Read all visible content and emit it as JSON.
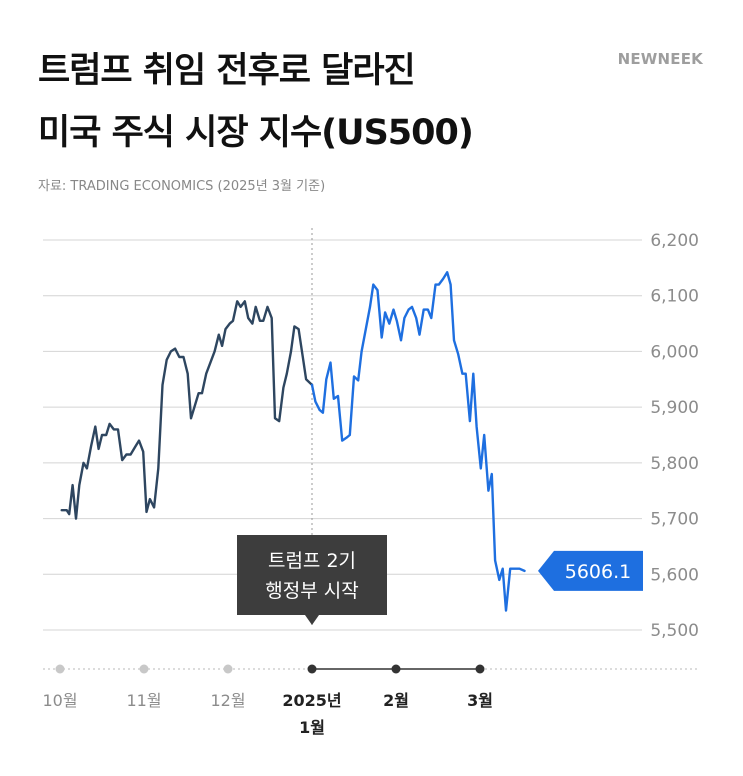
{
  "header": {
    "title_line1": "트럼프 취임 전후로 달라진",
    "title_line2": "미국 주식 시장 지수(US500)",
    "brand": "NEWNEEK",
    "source": "자료: TRADING ECONOMICS (2025년 3월 기준)"
  },
  "colors": {
    "before": "#2e4660",
    "after": "#1e6fe0",
    "grid": "#d4d4d4",
    "axis_dark": "#333333",
    "axis_light": "#c8c8c8",
    "callout_bg": "#3d3d3d"
  },
  "annotation": {
    "line1": "트럼프 2기",
    "line2": "행정부 시작"
  },
  "last_value_label": "5606.1",
  "chart_data": {
    "type": "line",
    "title": "트럼프 취임 전후로 달라진 미국 주식 시장 지수(US500)",
    "ylim": [
      5500,
      6200
    ],
    "yticks": [
      "6,200",
      "6,100",
      "6,000",
      "5,900",
      "5,800",
      "5,700",
      "5,600",
      "5,500"
    ],
    "ytick_values": [
      6200,
      6100,
      6000,
      5900,
      5800,
      5700,
      5600,
      5500
    ],
    "xticks": [
      {
        "label": "10월",
        "t": 0
      },
      {
        "label": "11월",
        "t": 1
      },
      {
        "label": "12월",
        "t": 2
      },
      {
        "label": "2025년",
        "label2": "1월",
        "t": 3
      },
      {
        "label": "2월",
        "t": 4
      },
      {
        "label": "3월",
        "t": 5
      }
    ],
    "inauguration_t": 3,
    "series": [
      {
        "segment": "before",
        "points": [
          [
            0.02,
            5715
          ],
          [
            0.08,
            5715
          ],
          [
            0.11,
            5708
          ],
          [
            0.15,
            5760
          ],
          [
            0.19,
            5700
          ],
          [
            0.23,
            5760
          ],
          [
            0.28,
            5800
          ],
          [
            0.32,
            5790
          ],
          [
            0.37,
            5830
          ],
          [
            0.42,
            5865
          ],
          [
            0.46,
            5825
          ],
          [
            0.5,
            5850
          ],
          [
            0.55,
            5850
          ],
          [
            0.59,
            5870
          ],
          [
            0.64,
            5860
          ],
          [
            0.69,
            5860
          ],
          [
            0.74,
            5805
          ],
          [
            0.79,
            5815
          ],
          [
            0.84,
            5815
          ],
          [
            0.9,
            5830
          ],
          [
            0.94,
            5840
          ],
          [
            0.99,
            5820
          ],
          [
            1.03,
            5712
          ],
          [
            1.07,
            5735
          ],
          [
            1.12,
            5720
          ],
          [
            1.17,
            5790
          ],
          [
            1.22,
            5940
          ],
          [
            1.27,
            5985
          ],
          [
            1.32,
            6000
          ],
          [
            1.37,
            6005
          ],
          [
            1.42,
            5990
          ],
          [
            1.47,
            5990
          ],
          [
            1.52,
            5960
          ],
          [
            1.56,
            5880
          ],
          [
            1.6,
            5900
          ],
          [
            1.65,
            5925
          ],
          [
            1.69,
            5925
          ],
          [
            1.74,
            5960
          ],
          [
            1.79,
            5980
          ],
          [
            1.84,
            6000
          ],
          [
            1.89,
            6030
          ],
          [
            1.93,
            6010
          ],
          [
            1.97,
            6040
          ],
          [
            2.02,
            6050
          ],
          [
            2.06,
            6055
          ],
          [
            2.11,
            6090
          ],
          [
            2.15,
            6080
          ],
          [
            2.2,
            6090
          ],
          [
            2.24,
            6060
          ],
          [
            2.29,
            6050
          ],
          [
            2.33,
            6080
          ],
          [
            2.38,
            6055
          ],
          [
            2.42,
            6055
          ],
          [
            2.47,
            6080
          ],
          [
            2.52,
            6060
          ],
          [
            2.56,
            5880
          ],
          [
            2.61,
            5875
          ],
          [
            2.66,
            5935
          ],
          [
            2.7,
            5960
          ],
          [
            2.75,
            6000
          ],
          [
            2.79,
            6045
          ],
          [
            2.84,
            6040
          ],
          [
            2.89,
            5990
          ],
          [
            2.93,
            5950
          ],
          [
            3.0,
            5940
          ]
        ]
      },
      {
        "segment": "after",
        "points": [
          [
            3.0,
            5940
          ],
          [
            3.04,
            5910
          ],
          [
            3.09,
            5895
          ],
          [
            3.13,
            5890
          ],
          [
            3.17,
            5950
          ],
          [
            3.22,
            5980
          ],
          [
            3.26,
            5915
          ],
          [
            3.31,
            5920
          ],
          [
            3.36,
            5840
          ],
          [
            3.41,
            5845
          ],
          [
            3.45,
            5850
          ],
          [
            3.5,
            5955
          ],
          [
            3.55,
            5948
          ],
          [
            3.59,
            6000
          ],
          [
            3.64,
            6040
          ],
          [
            3.69,
            6080
          ],
          [
            3.73,
            6120
          ],
          [
            3.78,
            6110
          ],
          [
            3.83,
            6025
          ],
          [
            3.87,
            6070
          ],
          [
            3.92,
            6050
          ],
          [
            3.97,
            6075
          ],
          [
            4.01,
            6055
          ],
          [
            4.06,
            6020
          ],
          [
            4.1,
            6060
          ],
          [
            4.15,
            6075
          ],
          [
            4.19,
            6080
          ],
          [
            4.24,
            6060
          ],
          [
            4.28,
            6030
          ],
          [
            4.33,
            6075
          ],
          [
            4.38,
            6075
          ],
          [
            4.42,
            6060
          ],
          [
            4.47,
            6120
          ],
          [
            4.51,
            6120
          ],
          [
            4.56,
            6130
          ],
          [
            4.61,
            6142
          ],
          [
            4.65,
            6120
          ],
          [
            4.69,
            6020
          ],
          [
            4.74,
            5995
          ],
          [
            4.79,
            5960
          ],
          [
            4.83,
            5960
          ],
          [
            4.88,
            5875
          ],
          [
            4.92,
            5960
          ],
          [
            4.96,
            5865
          ],
          [
            5.01,
            5790
          ],
          [
            5.05,
            5850
          ],
          [
            5.1,
            5750
          ],
          [
            5.14,
            5780
          ],
          [
            5.18,
            5625
          ],
          [
            5.23,
            5590
          ],
          [
            5.27,
            5610
          ],
          [
            5.31,
            5535
          ],
          [
            5.36,
            5610
          ],
          [
            5.41,
            5610
          ],
          [
            5.47,
            5610
          ],
          [
            5.53,
            5606.1
          ]
        ]
      }
    ]
  }
}
